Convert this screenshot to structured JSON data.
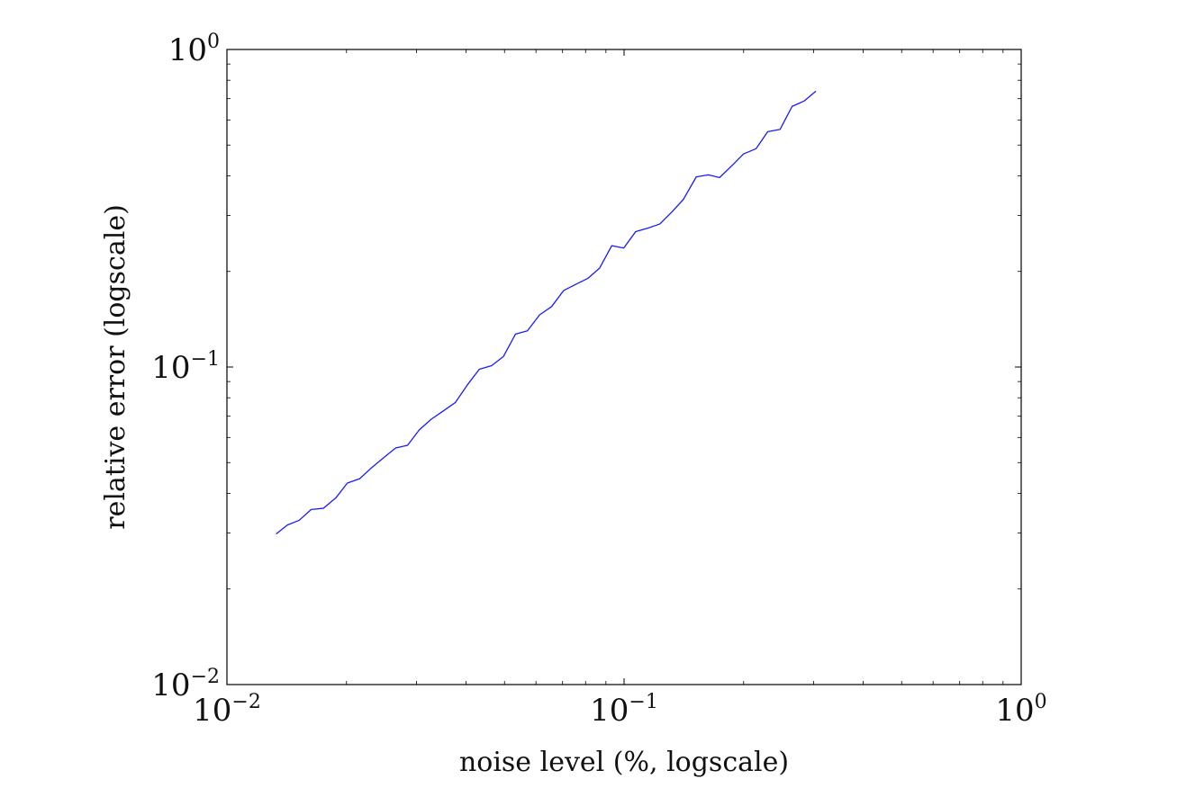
{
  "chart_data": {
    "type": "line",
    "title": "",
    "xlabel": "noise level (%, logscale)",
    "ylabel": "relative error (logscale)",
    "x_scale": "log",
    "y_scale": "log",
    "xlim": [
      0.01,
      1
    ],
    "ylim": [
      0.01,
      1
    ],
    "grid": false,
    "legend": "none",
    "x_ticks": [
      {
        "base": "10",
        "exp": "−2",
        "value": 0.01
      },
      {
        "base": "10",
        "exp": "−1",
        "value": 0.1
      },
      {
        "base": "10",
        "exp": "0",
        "value": 1
      }
    ],
    "y_ticks": [
      {
        "base": "10",
        "exp": "−2",
        "value": 0.01
      },
      {
        "base": "10",
        "exp": "−1",
        "value": 0.1
      },
      {
        "base": "10",
        "exp": "0",
        "value": 1
      }
    ],
    "series": [
      {
        "color": "#1a1aff",
        "x": [
          0.0133,
          0.0142,
          0.0152,
          0.0163,
          0.0175,
          0.0188,
          0.0201,
          0.0216,
          0.0231,
          0.0248,
          0.0266,
          0.0285,
          0.0305,
          0.0327,
          0.0351,
          0.0376,
          0.0403,
          0.0432,
          0.0464,
          0.0497,
          0.0533,
          0.0571,
          0.0613,
          0.0657,
          0.0704,
          0.0755,
          0.081,
          0.0868,
          0.0931,
          0.0998,
          0.107,
          0.115,
          0.123,
          0.132,
          0.141,
          0.152,
          0.163,
          0.174,
          0.187,
          0.2,
          0.215,
          0.23,
          0.247,
          0.265,
          0.284,
          0.304
        ],
        "y": [
          0.0298,
          0.0318,
          0.0329,
          0.0356,
          0.0359,
          0.0387,
          0.0431,
          0.0445,
          0.0481,
          0.0518,
          0.0556,
          0.0567,
          0.0634,
          0.0685,
          0.0728,
          0.0773,
          0.0878,
          0.0984,
          0.101,
          0.108,
          0.127,
          0.13,
          0.146,
          0.155,
          0.174,
          0.182,
          0.19,
          0.205,
          0.241,
          0.237,
          0.267,
          0.274,
          0.282,
          0.308,
          0.337,
          0.397,
          0.403,
          0.395,
          0.431,
          0.469,
          0.487,
          0.551,
          0.56,
          0.662,
          0.688,
          0.739
        ]
      }
    ]
  }
}
